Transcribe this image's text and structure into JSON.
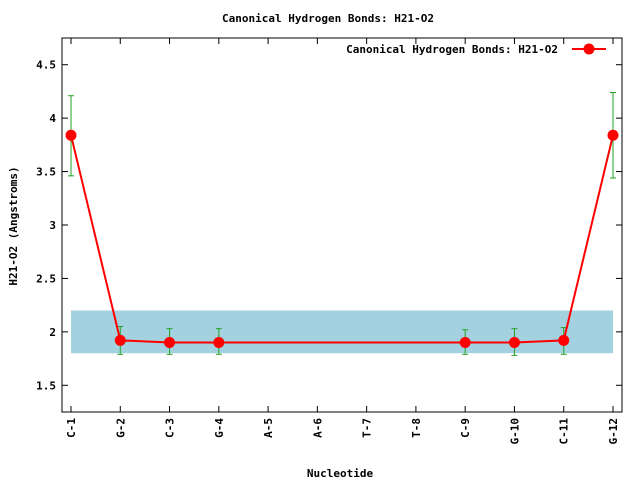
{
  "chart_data": {
    "type": "line",
    "title": "Canonical Hydrogen Bonds: H21-O2",
    "xlabel": "Nucleotide",
    "ylabel": "H21-O2 (Angstroms)",
    "categories": [
      "C-1",
      "G-2",
      "C-3",
      "G-4",
      "A-5",
      "A-6",
      "T-7",
      "T-8",
      "C-9",
      "G-10",
      "C-11",
      "G-12"
    ],
    "ylim": [
      1.25,
      4.75
    ],
    "yticks": [
      "1.5",
      "2",
      "2.5",
      "3",
      "3.5",
      "4",
      "4.5"
    ],
    "reference_band": {
      "low": 1.8,
      "high": 2.2,
      "color": "#a3d1df"
    },
    "series": [
      {
        "name": "Canonical Hydrogen Bonds: H21-O2",
        "color": "#ff0000",
        "error_color": "#22a022",
        "points": [
          {
            "category": "C-1",
            "y": 3.84,
            "err_low": 3.46,
            "err_high": 4.21
          },
          {
            "category": "G-2",
            "y": 1.92,
            "err_low": 1.79,
            "err_high": 2.05
          },
          {
            "category": "C-3",
            "y": 1.9,
            "err_low": 1.79,
            "err_high": 2.03
          },
          {
            "category": "G-4",
            "y": 1.9,
            "err_low": 1.79,
            "err_high": 2.03
          },
          {
            "category": "C-9",
            "y": 1.9,
            "err_low": 1.79,
            "err_high": 2.02
          },
          {
            "category": "G-10",
            "y": 1.9,
            "err_low": 1.78,
            "err_high": 2.03
          },
          {
            "category": "C-11",
            "y": 1.92,
            "err_low": 1.79,
            "err_high": 2.04
          },
          {
            "category": "G-12",
            "y": 3.84,
            "err_low": 3.44,
            "err_high": 4.24
          }
        ]
      }
    ],
    "grid": false,
    "legend_position": "top-right"
  }
}
